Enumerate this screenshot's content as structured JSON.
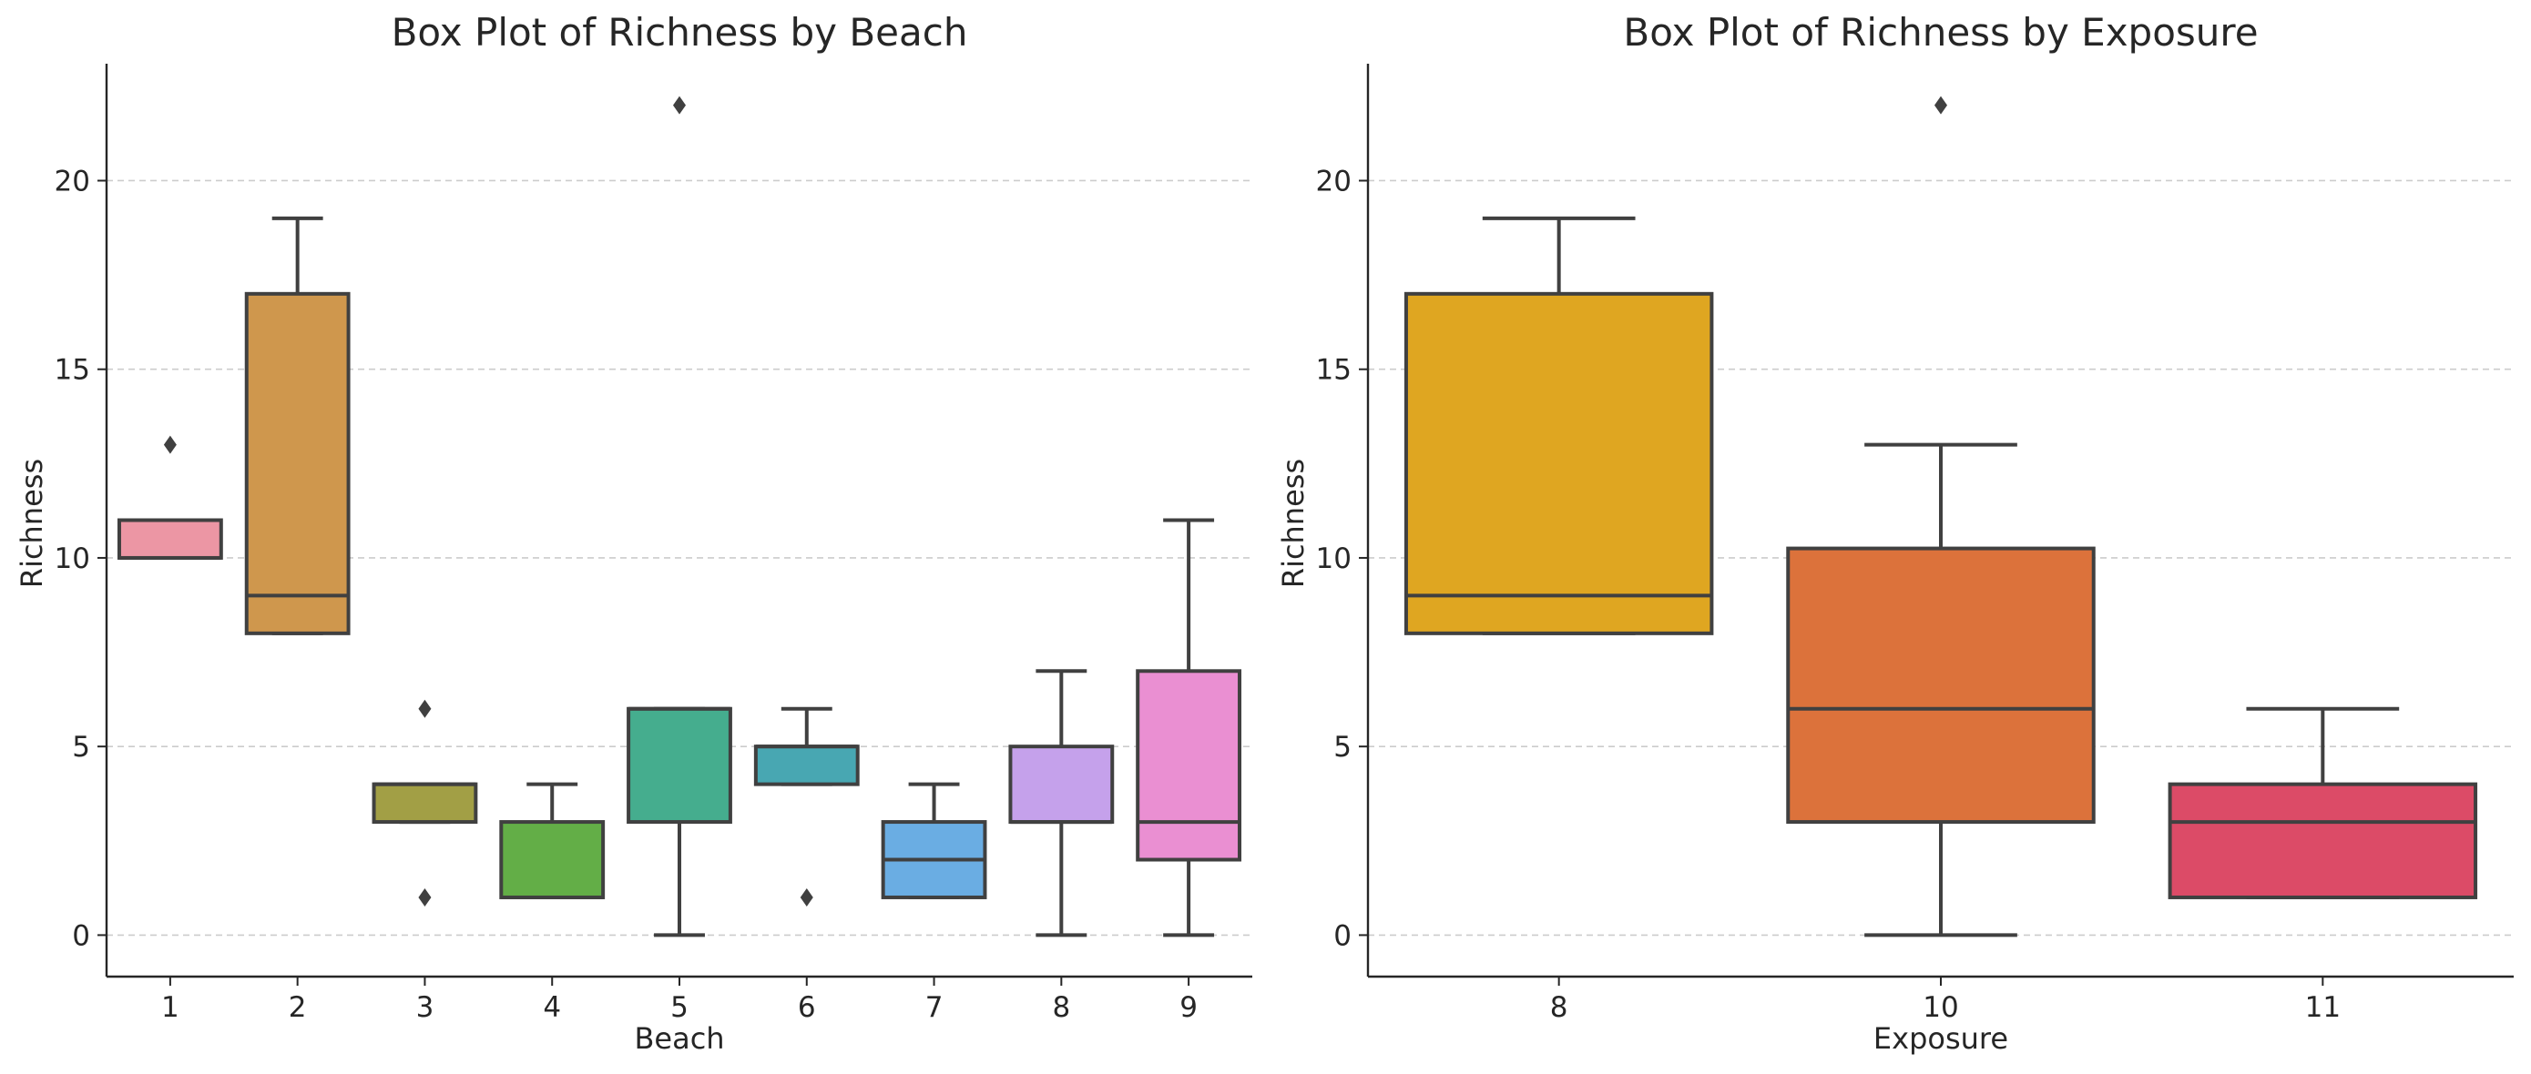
{
  "chart_data": [
    {
      "type": "box",
      "title": "Box Plot of Richness by Beach",
      "xlabel": "Beach",
      "ylabel": "Richness",
      "ylim": [
        -1.1,
        23.1
      ],
      "yticks": [
        0,
        5,
        10,
        15,
        20
      ],
      "grid": "horizontal dashed",
      "categories": [
        "1",
        "2",
        "3",
        "4",
        "5",
        "6",
        "7",
        "8",
        "9"
      ],
      "boxes": [
        {
          "category": "1",
          "whislo": 10,
          "q1": 10,
          "med": 10,
          "q3": 11,
          "whishi": 11,
          "fliers": [
            13
          ],
          "color": "#ec96a4"
        },
        {
          "category": "2",
          "whislo": 8,
          "q1": 8,
          "med": 9,
          "q3": 17,
          "whishi": 19,
          "fliers": [],
          "color": "#cf974d"
        },
        {
          "category": "3",
          "whislo": 3,
          "q1": 3,
          "med": 4,
          "q3": 4,
          "whishi": 4,
          "fliers": [
            6,
            1
          ],
          "color": "#a29f45"
        },
        {
          "category": "4",
          "whislo": 1,
          "q1": 1,
          "med": 1,
          "q3": 3,
          "whishi": 4,
          "fliers": [],
          "color": "#63ae47"
        },
        {
          "category": "5",
          "whislo": 0,
          "q1": 3,
          "med": 6,
          "q3": 6,
          "whishi": 6,
          "fliers": [
            22
          ],
          "color": "#45ad8e"
        },
        {
          "category": "6",
          "whislo": 4,
          "q1": 4,
          "med": 5,
          "q3": 5,
          "whishi": 6,
          "fliers": [
            1
          ],
          "color": "#48a7b2"
        },
        {
          "category": "7",
          "whislo": 1,
          "q1": 1,
          "med": 2,
          "q3": 3,
          "whishi": 4,
          "fliers": [],
          "color": "#6aade3"
        },
        {
          "category": "8",
          "whislo": 0,
          "q1": 3,
          "med": 3,
          "q3": 5,
          "whishi": 7,
          "fliers": [],
          "color": "#c5a1eb"
        },
        {
          "category": "9",
          "whislo": 0,
          "q1": 2,
          "med": 3,
          "q3": 7,
          "whishi": 11,
          "fliers": [],
          "color": "#ea8fd2"
        }
      ]
    },
    {
      "type": "box",
      "title": "Box Plot of Richness by Exposure",
      "xlabel": "Exposure",
      "ylabel": "Richness",
      "ylim": [
        -1.1,
        23.1
      ],
      "yticks": [
        0,
        5,
        10,
        15,
        20
      ],
      "grid": "horizontal dashed",
      "categories": [
        "8",
        "10",
        "11"
      ],
      "boxes": [
        {
          "category": "8",
          "whislo": 8,
          "q1": 8,
          "med": 9,
          "q3": 17,
          "whishi": 19,
          "fliers": [],
          "color": "#dfa621"
        },
        {
          "category": "10",
          "whislo": 0,
          "q1": 3,
          "med": 6,
          "q3": 10.25,
          "whishi": 13,
          "fliers": [
            22
          ],
          "color": "#dc723b"
        },
        {
          "category": "11",
          "whislo": 1,
          "q1": 1,
          "med": 3,
          "q3": 4,
          "whishi": 6,
          "fliers": [],
          "color": "#dc4b67"
        }
      ]
    }
  ]
}
